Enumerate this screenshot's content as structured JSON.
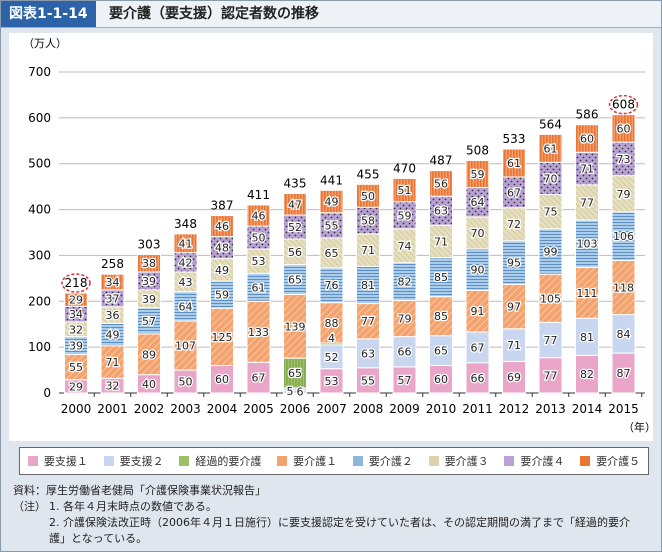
{
  "header": {
    "figure_no": "図表1-1-14",
    "title": "要介護（要支援）認定者数の推移"
  },
  "chart_data": {
    "type": "bar",
    "stacked": true,
    "title": "要介護（要支援）認定者数の推移",
    "ylabel": "（万人）",
    "xlabel": "（年）",
    "ylim": [
      0,
      700
    ],
    "yticks": [
      "0",
      "100",
      "200",
      "300",
      "400",
      "500",
      "600",
      "700"
    ],
    "categories": [
      "2000",
      "2001",
      "2002",
      "2003",
      "2004",
      "2005",
      "2006",
      "2007",
      "2008",
      "2009",
      "2010",
      "2011",
      "2012",
      "2013",
      "2014",
      "2015"
    ],
    "series": [
      {
        "name": "要支援１",
        "color": "#e9a6c8",
        "values": [
          29,
          32,
          40,
          50,
          60,
          67,
          5,
          53,
          55,
          57,
          60,
          66,
          69,
          77,
          82,
          87
        ]
      },
      {
        "name": "要支援２",
        "color": "#c8d7ef",
        "values": [
          null,
          null,
          null,
          null,
          null,
          null,
          6,
          52,
          63,
          66,
          65,
          67,
          71,
          77,
          81,
          84
        ]
      },
      {
        "name": "経過的要介護",
        "color": "#9cc068",
        "values": [
          null,
          null,
          null,
          null,
          null,
          null,
          65,
          4,
          null,
          null,
          null,
          null,
          null,
          null,
          null,
          null
        ]
      },
      {
        "name": "要介護１",
        "color": "#f4a36e",
        "values": [
          55,
          71,
          89,
          107,
          125,
          133,
          139,
          88,
          77,
          79,
          85,
          91,
          97,
          105,
          111,
          118
        ]
      },
      {
        "name": "要介護２",
        "color": "#8cb8de",
        "values": [
          39,
          49,
          57,
          64,
          59,
          61,
          65,
          76,
          81,
          82,
          85,
          90,
          95,
          99,
          103,
          106
        ]
      },
      {
        "name": "要介護３",
        "color": "#dcd3ac",
        "values": [
          32,
          36,
          39,
          43,
          49,
          53,
          56,
          65,
          71,
          74,
          71,
          70,
          72,
          75,
          77,
          79
        ]
      },
      {
        "name": "要介護４",
        "color": "#b8a2d4",
        "values": [
          34,
          37,
          39,
          42,
          48,
          50,
          52,
          55,
          58,
          59,
          63,
          64,
          67,
          70,
          71,
          73
        ]
      },
      {
        "name": "要介護５",
        "color": "#ea7434",
        "values": [
          29,
          34,
          38,
          41,
          46,
          46,
          47,
          49,
          50,
          51,
          56,
          59,
          61,
          61,
          60,
          60
        ]
      }
    ],
    "totals": [
      218,
      258,
      303,
      348,
      387,
      411,
      435,
      441,
      455,
      470,
      487,
      508,
      533,
      564,
      586,
      608
    ],
    "highlighted_totals": [
      "2000",
      "2015"
    ],
    "legend_position": "bottom"
  },
  "notes": {
    "source": "資料：厚生労働省老健局「介護保険事業状況報告」",
    "note_label": "（注）",
    "note1": "1. 各年４月末時点の数値である。",
    "note2": "2. 介護保険法改正時（2006年４月１日施行）に要支援認定を受けていた者は、その認定期間の満了まで「経過的要介護」となっている。"
  }
}
